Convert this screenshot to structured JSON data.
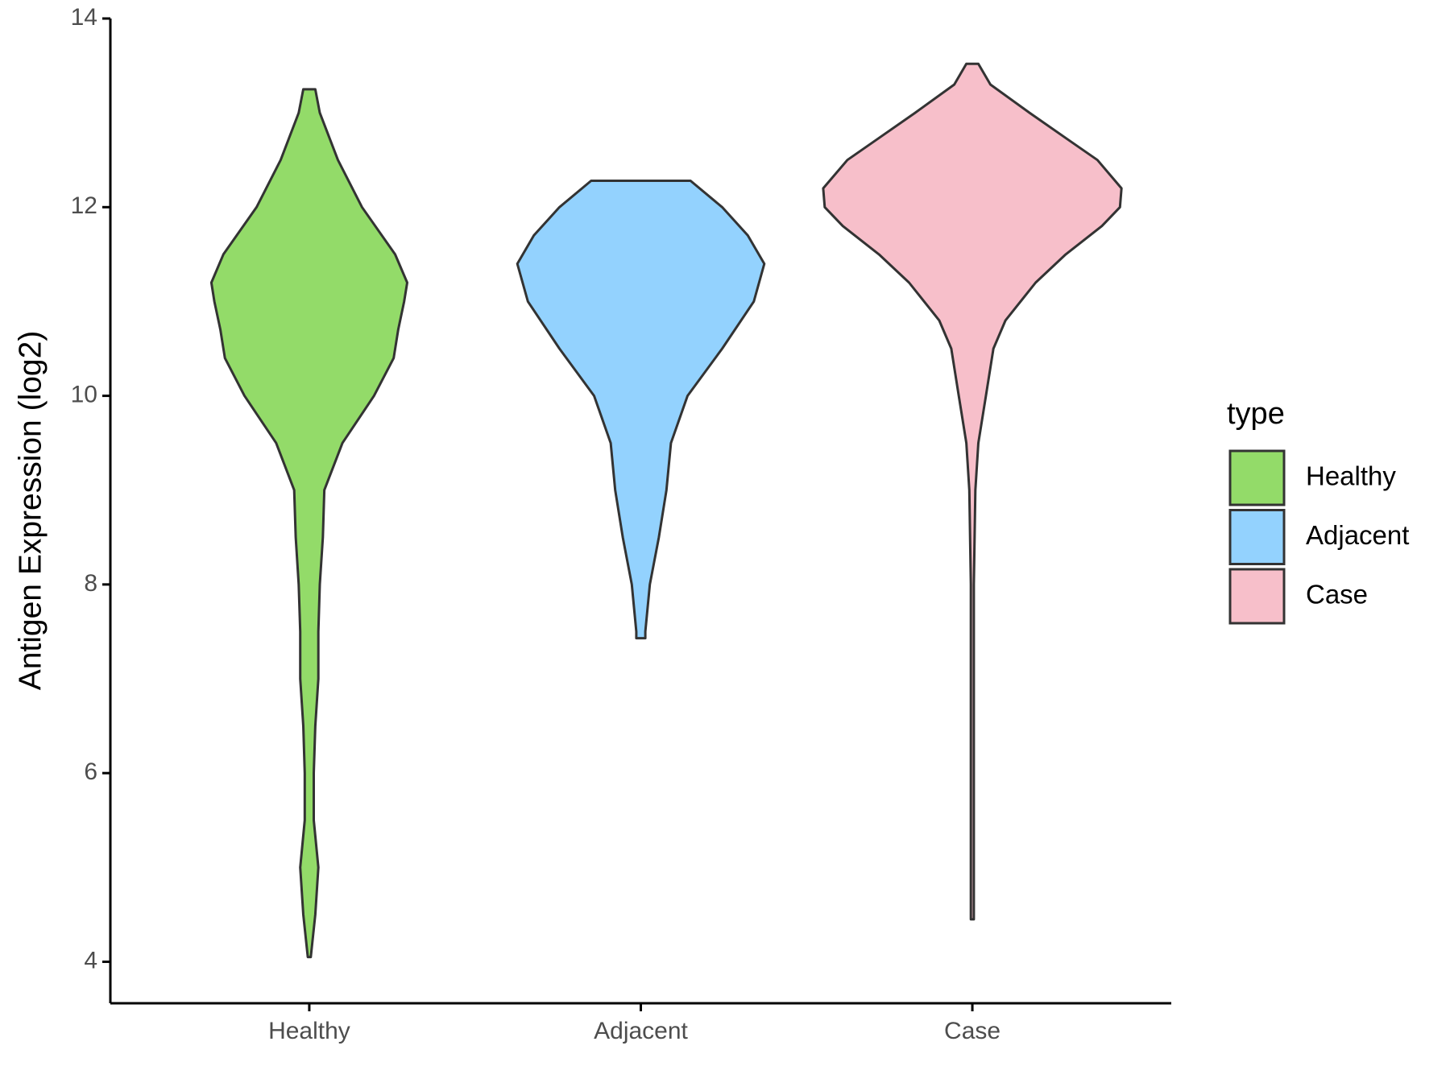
{
  "chart_data": {
    "type": "violin",
    "y_label": "Antigen Expression (log2)",
    "categories": [
      "Healthy",
      "Adjacent",
      "Case"
    ],
    "ylim": [
      3.56,
      14
    ],
    "yticks": [
      4,
      6,
      8,
      10,
      12,
      14
    ],
    "legend_title": "type",
    "legend_position": "right",
    "edge_color": "#333333",
    "series": [
      {
        "name": "Healthy",
        "color": "#93DB69",
        "density": {
          "y": [
            13.25,
            13.0,
            12.5,
            12.0,
            11.5,
            11.2,
            11.0,
            10.7,
            10.4,
            10.0,
            9.5,
            9.0,
            8.5,
            8.0,
            7.5,
            7.0,
            6.5,
            6.0,
            5.5,
            5.0,
            4.5,
            4.05
          ],
          "width": [
            0.04,
            0.07,
            0.19,
            0.35,
            0.57,
            0.65,
            0.63,
            0.59,
            0.56,
            0.43,
            0.22,
            0.1,
            0.09,
            0.07,
            0.06,
            0.06,
            0.04,
            0.03,
            0.03,
            0.06,
            0.04,
            0.01
          ]
        }
      },
      {
        "name": "Adjacent",
        "color": "#93D2FE",
        "density": {
          "y": [
            12.28,
            12.0,
            11.7,
            11.4,
            11.0,
            10.5,
            10.0,
            9.5,
            9.0,
            8.5,
            8.0,
            7.5,
            7.43
          ],
          "width": [
            0.33,
            0.54,
            0.71,
            0.82,
            0.75,
            0.54,
            0.31,
            0.2,
            0.17,
            0.12,
            0.06,
            0.03,
            0.03
          ]
        }
      },
      {
        "name": "Case",
        "color": "#F7BFCA",
        "density": {
          "y": [
            13.52,
            13.3,
            13.0,
            12.7,
            12.5,
            12.2,
            12.0,
            11.8,
            11.5,
            11.2,
            10.8,
            10.5,
            10.0,
            9.5,
            9.0,
            8.0,
            7.0,
            6.0,
            5.0,
            4.45
          ],
          "width": [
            0.04,
            0.12,
            0.38,
            0.65,
            0.83,
            0.99,
            0.98,
            0.86,
            0.62,
            0.42,
            0.22,
            0.14,
            0.09,
            0.04,
            0.02,
            0.01,
            0.01,
            0.01,
            0.01,
            0.01
          ]
        }
      }
    ]
  }
}
